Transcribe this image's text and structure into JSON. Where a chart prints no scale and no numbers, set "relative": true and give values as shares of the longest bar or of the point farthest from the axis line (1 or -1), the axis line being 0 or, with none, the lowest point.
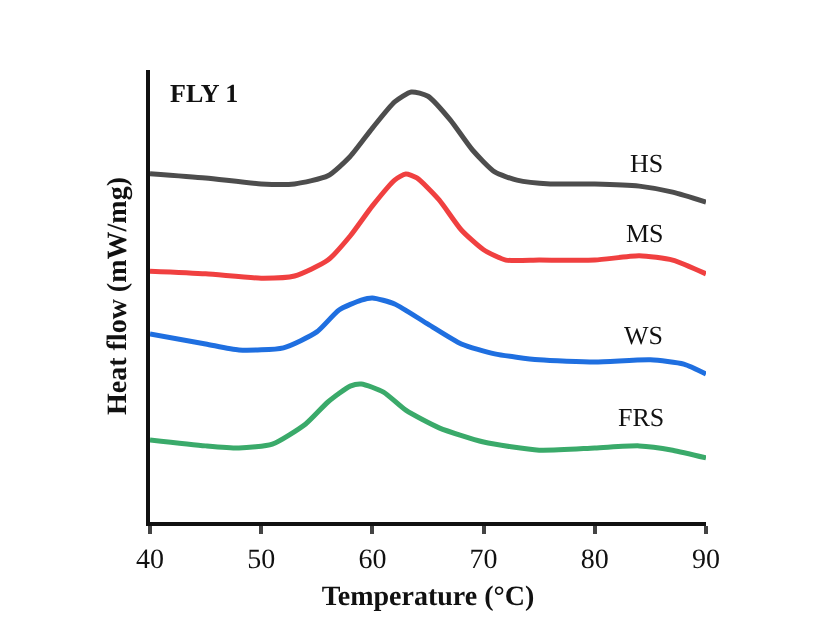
{
  "chart_data": {
    "type": "line",
    "title": "FLY 1",
    "xlabel": "Temperature (°C)",
    "ylabel": "Heat flow (mW/mg)",
    "relative": true,
    "tick_labels": "x",
    "xlim": [
      40,
      90
    ],
    "xticks": [
      40,
      50,
      60,
      70,
      80,
      90
    ],
    "legend": false,
    "grid": false,
    "marker": "none",
    "line_style": "solid",
    "series": [
      {
        "name": "HS",
        "color": "#4d4d4d",
        "x": [
          40,
          45,
          50,
          53,
          56,
          58,
          60,
          62,
          63.5,
          65,
          67,
          69,
          71,
          73,
          76,
          80,
          84,
          87,
          90
        ],
        "values": [
          0.81,
          0.8,
          0.786,
          0.786,
          0.805,
          0.85,
          0.916,
          0.977,
          1.0,
          0.99,
          0.935,
          0.865,
          0.814,
          0.795,
          0.786,
          0.786,
          0.781,
          0.767,
          0.744
        ]
      },
      {
        "name": "MS",
        "color": "#f04040",
        "x": [
          40,
          45,
          50,
          53,
          56,
          58,
          60,
          62,
          63,
          64,
          66,
          68,
          70,
          72,
          75,
          80,
          84,
          87,
          90
        ],
        "values": [
          0.583,
          0.577,
          0.567,
          0.572,
          0.609,
          0.665,
          0.735,
          0.795,
          0.809,
          0.8,
          0.749,
          0.679,
          0.633,
          0.609,
          0.609,
          0.609,
          0.619,
          0.609,
          0.577
        ]
      },
      {
        "name": "WS",
        "color": "#1f6fe0",
        "x": [
          40,
          45,
          48,
          52,
          55,
          57,
          59,
          60,
          62,
          65,
          68,
          71,
          75,
          80,
          85,
          88,
          90
        ],
        "values": [
          0.437,
          0.414,
          0.4,
          0.405,
          0.442,
          0.493,
          0.516,
          0.521,
          0.507,
          0.46,
          0.414,
          0.391,
          0.377,
          0.372,
          0.377,
          0.367,
          0.344
        ]
      },
      {
        "name": "FRS",
        "color": "#3aaa6a",
        "x": [
          40,
          45,
          48,
          51,
          54,
          56,
          58,
          59,
          61,
          63,
          66,
          70,
          75,
          80,
          84,
          87,
          90
        ],
        "values": [
          0.191,
          0.177,
          0.172,
          0.181,
          0.228,
          0.279,
          0.316,
          0.321,
          0.302,
          0.26,
          0.219,
          0.186,
          0.167,
          0.172,
          0.177,
          0.167,
          0.149
        ]
      }
    ]
  }
}
